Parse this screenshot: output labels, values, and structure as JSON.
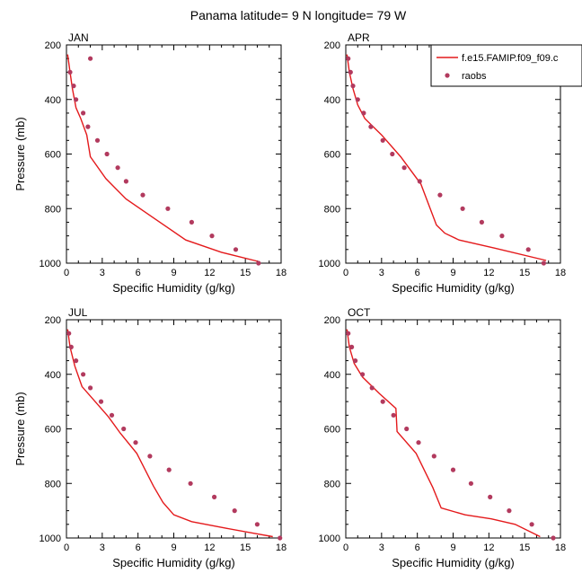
{
  "title": "Panama  latitude= 9 N longitude= 79 W",
  "xlabel": "Specific Humidity (g/kg)",
  "ylabel": "Pressure (mb)",
  "legend": {
    "model": "f.e15.FAMIP.f09_f09.c",
    "obs": "raobs"
  },
  "colors": {
    "model": "#e41a1c",
    "obs": "#b23a5e"
  },
  "chart_data": [
    {
      "type": "line",
      "panel": "JAN",
      "xlim": [
        0,
        18
      ],
      "ylim": [
        200,
        1000
      ],
      "xticks": [
        0,
        3,
        6,
        9,
        12,
        15,
        18
      ],
      "yticks": [
        200,
        400,
        600,
        800,
        1000
      ],
      "y_inverted": true,
      "grid": false,
      "legend": "none",
      "series": [
        {
          "name": "f.e15.FAMIP.f09_f09.c",
          "kind": "line",
          "points": [
            [
              0.1,
              235
            ],
            [
              0.3,
              300
            ],
            [
              0.5,
              360
            ],
            [
              0.8,
              430
            ],
            [
              1.2,
              470
            ],
            [
              1.7,
              530
            ],
            [
              2.0,
              610
            ],
            [
              3.3,
              690
            ],
            [
              5.0,
              765
            ],
            [
              7.5,
              840
            ],
            [
              10.0,
              915
            ],
            [
              13.0,
              960
            ],
            [
              16.2,
              995
            ]
          ]
        },
        {
          "name": "raobs",
          "kind": "scatter",
          "points": [
            [
              2.0,
              250
            ],
            [
              0.3,
              300
            ],
            [
              0.6,
              350
            ],
            [
              0.8,
              400
            ],
            [
              1.4,
              450
            ],
            [
              1.8,
              500
            ],
            [
              2.6,
              550
            ],
            [
              3.4,
              600
            ],
            [
              4.3,
              650
            ],
            [
              5.0,
              700
            ],
            [
              6.4,
              750
            ],
            [
              8.5,
              800
            ],
            [
              10.5,
              850
            ],
            [
              12.2,
              900
            ],
            [
              14.2,
              950
            ],
            [
              16.1,
              1000
            ]
          ]
        }
      ]
    },
    {
      "type": "line",
      "panel": "APR",
      "xlim": [
        0,
        18
      ],
      "ylim": [
        200,
        1000
      ],
      "xticks": [
        0,
        3,
        6,
        9,
        12,
        15,
        18
      ],
      "yticks": [
        200,
        400,
        600,
        800,
        1000
      ],
      "y_inverted": true,
      "grid": false,
      "legend": "top-right",
      "series": [
        {
          "name": "f.e15.FAMIP.f09_f09.c",
          "kind": "line",
          "points": [
            [
              0.1,
              235
            ],
            [
              0.3,
              300
            ],
            [
              0.6,
              360
            ],
            [
              1.0,
              420
            ],
            [
              1.6,
              470
            ],
            [
              3.0,
              530
            ],
            [
              4.6,
              610
            ],
            [
              6.3,
              710
            ],
            [
              7.6,
              860
            ],
            [
              8.3,
              890
            ],
            [
              9.5,
              915
            ],
            [
              12.5,
              945
            ],
            [
              16.8,
              990
            ]
          ]
        },
        {
          "name": "raobs",
          "kind": "scatter",
          "points": [
            [
              0.2,
              250
            ],
            [
              0.4,
              300
            ],
            [
              0.6,
              350
            ],
            [
              1.0,
              400
            ],
            [
              1.5,
              450
            ],
            [
              2.1,
              500
            ],
            [
              3.1,
              550
            ],
            [
              3.9,
              600
            ],
            [
              4.9,
              650
            ],
            [
              6.2,
              700
            ],
            [
              7.9,
              750
            ],
            [
              9.8,
              800
            ],
            [
              11.4,
              850
            ],
            [
              13.1,
              900
            ],
            [
              15.3,
              950
            ],
            [
              16.6,
              1000
            ]
          ]
        }
      ]
    },
    {
      "type": "line",
      "panel": "JUL",
      "xlim": [
        0,
        18
      ],
      "ylim": [
        200,
        1000
      ],
      "xticks": [
        0,
        3,
        6,
        9,
        12,
        15,
        18
      ],
      "yticks": [
        200,
        400,
        600,
        800,
        1000
      ],
      "y_inverted": true,
      "grid": false,
      "legend": "none",
      "series": [
        {
          "name": "f.e15.FAMIP.f09_f09.c",
          "kind": "line",
          "points": [
            [
              0.1,
              235
            ],
            [
              0.3,
              300
            ],
            [
              0.7,
              370
            ],
            [
              1.3,
              445
            ],
            [
              2.4,
              500
            ],
            [
              3.5,
              555
            ],
            [
              4.5,
              615
            ],
            [
              5.9,
              690
            ],
            [
              7.3,
              810
            ],
            [
              8.1,
              870
            ],
            [
              9.0,
              915
            ],
            [
              10.5,
              940
            ],
            [
              13.5,
              965
            ],
            [
              16.0,
              985
            ],
            [
              17.3,
              995
            ]
          ]
        },
        {
          "name": "raobs",
          "kind": "scatter",
          "points": [
            [
              0.2,
              250
            ],
            [
              0.4,
              300
            ],
            [
              0.8,
              350
            ],
            [
              1.4,
              400
            ],
            [
              2.0,
              450
            ],
            [
              2.9,
              500
            ],
            [
              3.8,
              550
            ],
            [
              4.8,
              600
            ],
            [
              5.8,
              650
            ],
            [
              7.0,
              700
            ],
            [
              8.6,
              750
            ],
            [
              10.4,
              800
            ],
            [
              12.4,
              850
            ],
            [
              14.1,
              900
            ],
            [
              16.0,
              950
            ],
            [
              17.9,
              1000
            ]
          ]
        }
      ]
    },
    {
      "type": "line",
      "panel": "OCT",
      "xlim": [
        0,
        18
      ],
      "ylim": [
        200,
        1000
      ],
      "xticks": [
        0,
        3,
        6,
        9,
        12,
        15,
        18
      ],
      "yticks": [
        200,
        400,
        600,
        800,
        1000
      ],
      "y_inverted": true,
      "grid": false,
      "legend": "none",
      "series": [
        {
          "name": "f.e15.FAMIP.f09_f09.c",
          "kind": "line",
          "points": [
            [
              0.1,
              235
            ],
            [
              0.3,
              300
            ],
            [
              0.7,
              360
            ],
            [
              1.4,
              410
            ],
            [
              2.8,
              470
            ],
            [
              4.2,
              525
            ],
            [
              4.3,
              610
            ],
            [
              5.9,
              690
            ],
            [
              7.3,
              815
            ],
            [
              8.0,
              890
            ],
            [
              10.0,
              915
            ],
            [
              12.2,
              930
            ],
            [
              14.2,
              950
            ],
            [
              16.3,
              995
            ]
          ]
        },
        {
          "name": "raobs",
          "kind": "scatter",
          "points": [
            [
              0.2,
              250
            ],
            [
              0.5,
              300
            ],
            [
              0.8,
              350
            ],
            [
              1.4,
              400
            ],
            [
              2.2,
              450
            ],
            [
              3.1,
              500
            ],
            [
              4.0,
              550
            ],
            [
              5.1,
              600
            ],
            [
              6.1,
              650
            ],
            [
              7.4,
              700
            ],
            [
              9.0,
              750
            ],
            [
              10.5,
              800
            ],
            [
              12.1,
              850
            ],
            [
              13.7,
              900
            ],
            [
              15.6,
              950
            ],
            [
              17.4,
              1000
            ]
          ]
        }
      ]
    }
  ]
}
